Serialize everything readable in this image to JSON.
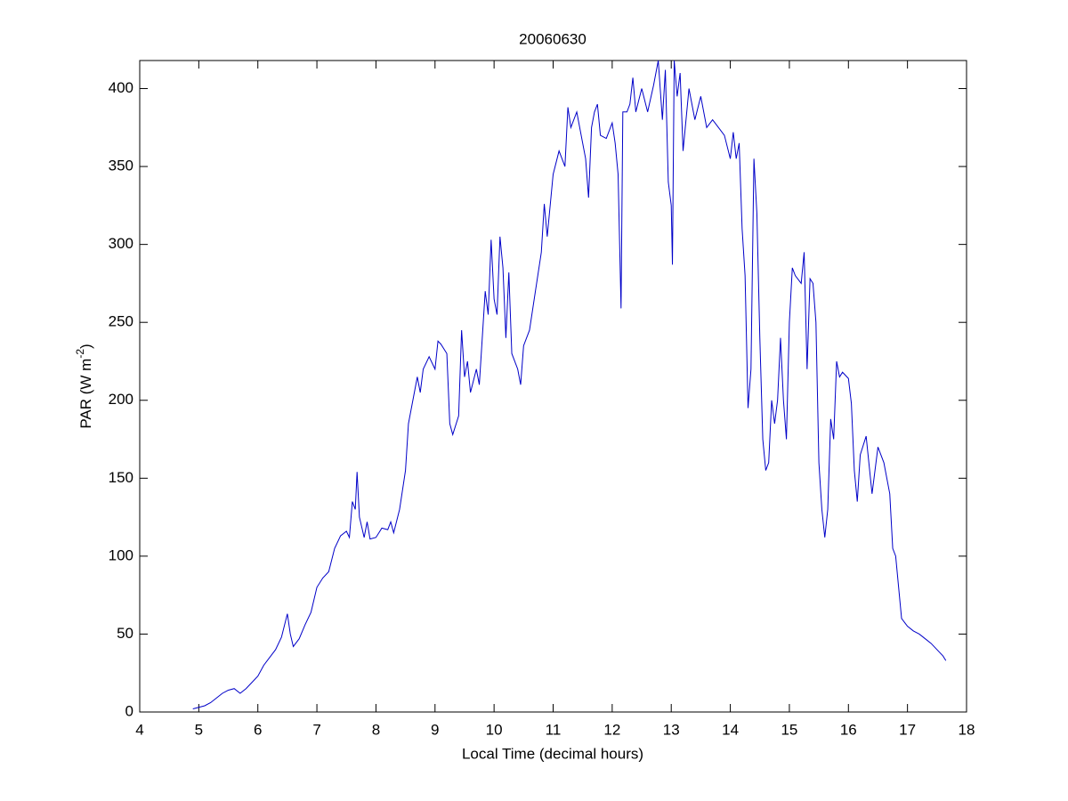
{
  "chart_data": {
    "type": "line",
    "title": "20060630",
    "xlabel": "Local Time (decimal hours)",
    "ylabel": [
      "PAR (W m",
      "-2",
      ")"
    ],
    "xlim": [
      4,
      18
    ],
    "xticks": [
      4,
      5,
      6,
      7,
      8,
      9,
      10,
      11,
      12,
      13,
      14,
      15,
      16,
      17,
      18
    ],
    "ylim": [
      0,
      418
    ],
    "yticks": [
      0,
      50,
      100,
      150,
      200,
      250,
      300,
      350,
      400
    ],
    "grid": false,
    "series": [
      {
        "color": "#0000c8",
        "x": [
          4.9,
          5.0,
          5.1,
          5.2,
          5.3,
          5.4,
          5.5,
          5.6,
          5.7,
          5.8,
          5.9,
          6.0,
          6.1,
          6.2,
          6.3,
          6.4,
          6.5,
          6.55,
          6.6,
          6.7,
          6.8,
          6.9,
          7.0,
          7.1,
          7.2,
          7.3,
          7.4,
          7.5,
          7.55,
          7.6,
          7.65,
          7.68,
          7.72,
          7.8,
          7.85,
          7.9,
          8.0,
          8.1,
          8.2,
          8.25,
          8.3,
          8.4,
          8.5,
          8.55,
          8.6,
          8.7,
          8.75,
          8.8,
          8.9,
          9.0,
          9.05,
          9.1,
          9.2,
          9.25,
          9.3,
          9.4,
          9.45,
          9.5,
          9.55,
          9.6,
          9.7,
          9.75,
          9.8,
          9.85,
          9.9,
          9.95,
          10.0,
          10.05,
          10.1,
          10.15,
          10.2,
          10.25,
          10.3,
          10.4,
          10.45,
          10.5,
          10.6,
          10.7,
          10.8,
          10.85,
          10.9,
          11.0,
          11.1,
          11.2,
          11.25,
          11.3,
          11.4,
          11.5,
          11.55,
          11.6,
          11.65,
          11.7,
          11.75,
          11.8,
          11.9,
          12.0,
          12.05,
          12.1,
          12.15,
          12.18,
          12.25,
          12.3,
          12.35,
          12.4,
          12.5,
          12.6,
          12.7,
          12.78,
          12.85,
          12.9,
          12.95,
          13.0,
          13.02,
          13.05,
          13.1,
          13.15,
          13.2,
          13.3,
          13.4,
          13.5,
          13.6,
          13.7,
          13.8,
          13.9,
          14.0,
          14.05,
          14.1,
          14.15,
          14.2,
          14.25,
          14.3,
          14.35,
          14.4,
          14.45,
          14.5,
          14.55,
          14.6,
          14.65,
          14.7,
          14.75,
          14.8,
          14.85,
          14.9,
          14.95,
          15.0,
          15.05,
          15.1,
          15.2,
          15.25,
          15.3,
          15.35,
          15.4,
          15.45,
          15.5,
          15.55,
          15.6,
          15.65,
          15.7,
          15.75,
          15.8,
          15.85,
          15.9,
          16.0,
          16.05,
          16.1,
          16.15,
          16.2,
          16.3,
          16.4,
          16.5,
          16.6,
          16.7,
          16.75,
          16.8,
          16.85,
          16.9,
          17.0,
          17.1,
          17.2,
          17.3,
          17.4,
          17.5,
          17.6,
          17.65
        ],
        "values": [
          2,
          3,
          4,
          6,
          9,
          12,
          14,
          15,
          12,
          15,
          19,
          23,
          30,
          35,
          40,
          48,
          63,
          50,
          42,
          47,
          56,
          64,
          80,
          86,
          90,
          105,
          113,
          116,
          112,
          135,
          130,
          154,
          125,
          112,
          122,
          111,
          112,
          118,
          117,
          122,
          115,
          130,
          155,
          185,
          195,
          215,
          205,
          220,
          228,
          220,
          238,
          236,
          230,
          185,
          178,
          190,
          245,
          215,
          225,
          205,
          220,
          210,
          240,
          270,
          255,
          303,
          265,
          255,
          305,
          285,
          240,
          282,
          230,
          220,
          210,
          235,
          245,
          270,
          295,
          326,
          305,
          345,
          360,
          350,
          388,
          375,
          385,
          365,
          355,
          330,
          375,
          385,
          390,
          370,
          368,
          378,
          365,
          345,
          259,
          385,
          385,
          390,
          407,
          385,
          400,
          385,
          402,
          418,
          380,
          412,
          340,
          325,
          287,
          418,
          395,
          410,
          360,
          400,
          380,
          395,
          375,
          380,
          375,
          370,
          355,
          372,
          355,
          365,
          310,
          280,
          195,
          220,
          355,
          320,
          240,
          175,
          155,
          160,
          200,
          185,
          200,
          240,
          200,
          175,
          250,
          285,
          280,
          275,
          295,
          220,
          278,
          275,
          250,
          160,
          130,
          112,
          130,
          188,
          175,
          225,
          215,
          218,
          214,
          198,
          155,
          135,
          165,
          177,
          140,
          170,
          160,
          140,
          105,
          100,
          80,
          60,
          55,
          52,
          50,
          47,
          44,
          40,
          36,
          33
        ]
      }
    ]
  }
}
